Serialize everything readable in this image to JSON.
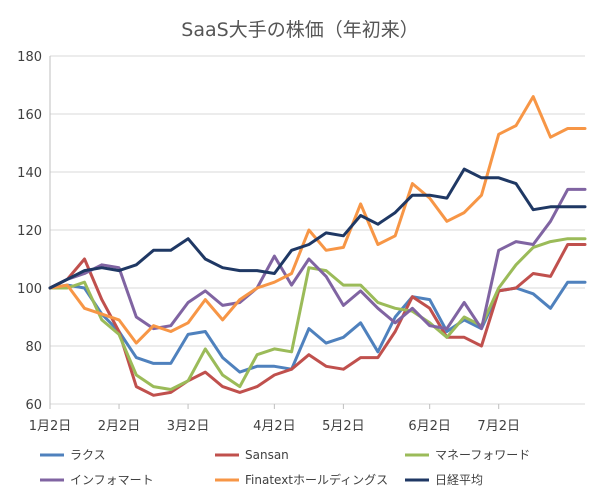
{
  "chart_data": {
    "type": "line",
    "title": "SaaS大手の株価（年初来）",
    "xlabel": "",
    "ylabel": "",
    "ylim": [
      60,
      180
    ],
    "yticks": [
      60,
      80,
      100,
      120,
      140,
      160,
      180
    ],
    "grid": "horizontal",
    "legend_position": "bottom",
    "x_tick_labels": [
      {
        "label": "1月2日",
        "index": 0
      },
      {
        "label": "2月2日",
        "index": 4
      },
      {
        "label": "3月2日",
        "index": 8
      },
      {
        "label": "4月2日",
        "index": 13
      },
      {
        "label": "5月2日",
        "index": 17
      },
      {
        "label": "6月2日",
        "index": 22
      },
      {
        "label": "7月2日",
        "index": 26
      }
    ],
    "n_points": 32,
    "series": [
      {
        "name": "ラクス",
        "color": "#4F81BD",
        "values": [
          100,
          101,
          100,
          91,
          85,
          76,
          74,
          74,
          84,
          85,
          76,
          71,
          73,
          73,
          72,
          86,
          81,
          83,
          88,
          78,
          90,
          97,
          96,
          85,
          89,
          86,
          99,
          100,
          98,
          93,
          102,
          102
        ]
      },
      {
        "name": "Sansan",
        "color": "#C0504D",
        "values": [
          100,
          103,
          110,
          96,
          85,
          66,
          63,
          64,
          68,
          71,
          66,
          64,
          66,
          70,
          72,
          77,
          73,
          72,
          76,
          76,
          85,
          97,
          93,
          83,
          83,
          80,
          99,
          100,
          105,
          104,
          115,
          115
        ]
      },
      {
        "name": "マネーフォワード",
        "color": "#9BBB59",
        "values": [
          100,
          100,
          102,
          89,
          84,
          70,
          66,
          65,
          68,
          79,
          70,
          66,
          77,
          79,
          78,
          107,
          106,
          101,
          101,
          95,
          93,
          92,
          88,
          83,
          90,
          87,
          100,
          108,
          114,
          116,
          117,
          117
        ]
      },
      {
        "name": "インフォマート",
        "color": "#8064A2",
        "values": [
          100,
          103,
          105,
          108,
          107,
          90,
          86,
          87,
          95,
          99,
          94,
          95,
          100,
          111,
          101,
          110,
          104,
          94,
          99,
          93,
          88,
          93,
          87,
          86,
          95,
          86,
          113,
          116,
          115,
          123,
          134,
          134
        ]
      },
      {
        "name": "Finatextホールディングス",
        "color": "#F79646",
        "values": [
          100,
          101,
          93,
          91,
          89,
          81,
          87,
          85,
          88,
          96,
          89,
          96,
          100,
          102,
          105,
          120,
          113,
          114,
          129,
          115,
          118,
          136,
          131,
          123,
          126,
          132,
          153,
          156,
          166,
          152,
          155,
          155
        ]
      },
      {
        "name": "日経平均",
        "color": "#1F3864",
        "values": [
          100,
          103,
          106,
          107,
          106,
          108,
          113,
          113,
          117,
          110,
          107,
          106,
          106,
          105,
          113,
          115,
          119,
          118,
          125,
          122,
          126,
          132,
          132,
          131,
          141,
          138,
          138,
          136,
          127,
          128,
          128,
          128
        ]
      }
    ]
  }
}
